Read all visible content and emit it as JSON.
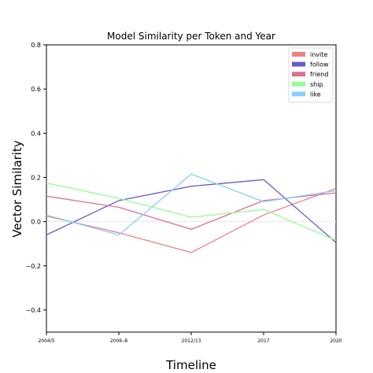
{
  "chart_data": {
    "type": "line",
    "title": "Model Similarity per Token and Year",
    "xlabel": "Timeline",
    "ylabel": "Vector Similarity",
    "categories": [
      "2004/5",
      "2006–8",
      "2012/13",
      "2017",
      "2020"
    ],
    "ylim": [
      -0.5,
      0.8
    ],
    "yticks": [
      -0.4,
      -0.2,
      0.0,
      0.2,
      0.4,
      0.6,
      0.8
    ],
    "ytick_labels": [
      "−0.4",
      "−0.2",
      "0.0",
      "0.2",
      "0.4",
      "0.6",
      "0.8"
    ],
    "zero_line": true,
    "legend_position": "top-right",
    "series": [
      {
        "name": "invite",
        "color": "#f08080",
        "values": [
          0.025,
          -0.05,
          -0.14,
          0.03,
          0.15
        ]
      },
      {
        "name": "follow",
        "color": "#6a5acd",
        "values": [
          -0.06,
          0.095,
          0.16,
          0.19,
          -0.095
        ]
      },
      {
        "name": "friend",
        "color": "#db7093",
        "values": [
          0.115,
          0.065,
          -0.035,
          0.095,
          0.13
        ]
      },
      {
        "name": "ship",
        "color": "#98fb98",
        "values": [
          0.175,
          0.105,
          0.02,
          0.055,
          -0.085
        ]
      },
      {
        "name": "like",
        "color": "#87cefa",
        "values": [
          0.03,
          -0.06,
          0.215,
          0.09,
          0.14
        ]
      }
    ]
  }
}
